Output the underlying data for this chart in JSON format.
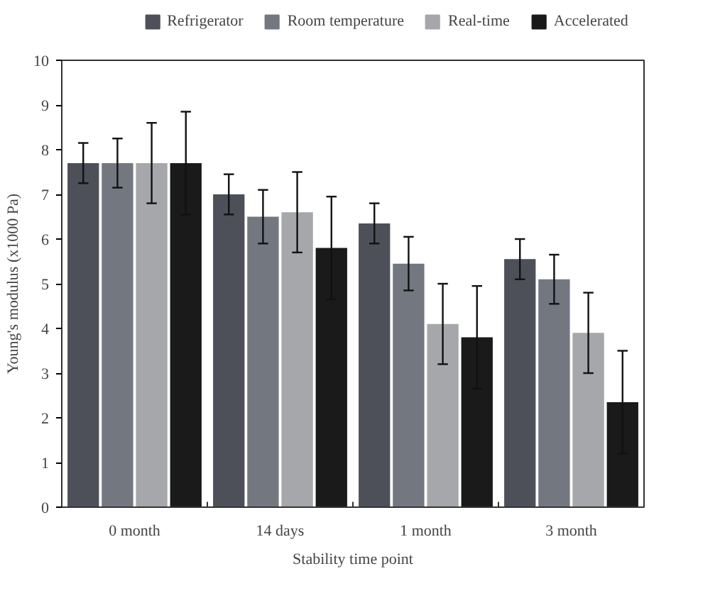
{
  "chart_data": {
    "type": "bar",
    "xlabel": "Stability time point",
    "ylabel": "Young's modulus (x1000 Pa)",
    "categories": [
      "0 month",
      "14 days",
      "1 month",
      "3 month"
    ],
    "series": [
      {
        "name": "Refrigerator",
        "color": "#4e5059",
        "values": [
          7.7,
          7.0,
          6.35,
          5.55
        ],
        "errors": [
          0.45,
          0.45,
          0.45,
          0.45
        ]
      },
      {
        "name": "Room temperature",
        "color": "#737780",
        "values": [
          7.7,
          6.5,
          5.45,
          5.1
        ],
        "errors": [
          0.55,
          0.6,
          0.6,
          0.55
        ]
      },
      {
        "name": "Real-time",
        "color": "#a6a7aa",
        "values": [
          7.7,
          6.6,
          4.1,
          3.9
        ],
        "errors": [
          0.9,
          0.9,
          0.9,
          0.9
        ]
      },
      {
        "name": "Accelerated",
        "color": "#1a1a1a",
        "values": [
          7.7,
          5.8,
          3.8,
          2.35
        ],
        "errors": [
          1.15,
          1.15,
          1.15,
          1.15
        ]
      }
    ],
    "ylim": [
      0,
      10
    ],
    "yticks": [
      0,
      1,
      2,
      3,
      4,
      5,
      6,
      7,
      8,
      9,
      10
    ],
    "grid": false,
    "legend": "top"
  }
}
